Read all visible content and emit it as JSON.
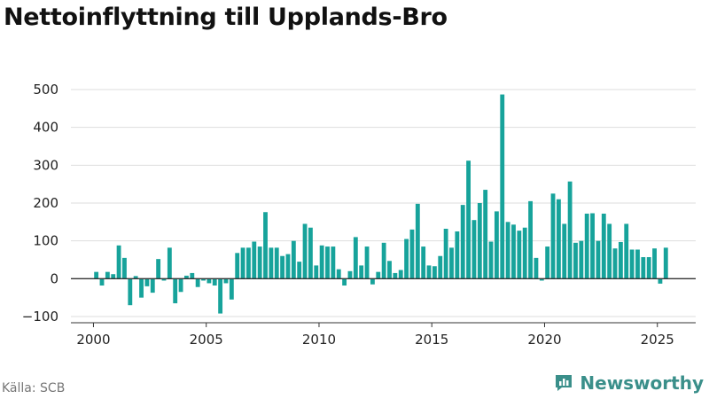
{
  "title": "Nettoinflyttning till Upplands-Bro",
  "source": "Källa: SCB",
  "brand": "Newsworthy",
  "colors": {
    "bar": "#17a39b",
    "axis": "#333333",
    "grid": "#dddddd",
    "brand": "#3a8f8a"
  },
  "chart_data": {
    "type": "bar",
    "ylim": [
      -100,
      500
    ],
    "yticks": [
      -100,
      0,
      100,
      200,
      300,
      400,
      500
    ],
    "ytick_labels": [
      "−100",
      "0",
      "100",
      "200",
      "300",
      "400",
      "500"
    ],
    "xticks": [
      2000,
      2005,
      2010,
      2015,
      2020,
      2025
    ],
    "xlim": [
      1999,
      2026.7
    ],
    "grid": true,
    "bar_width_years": 0.2,
    "x_unit": "quarter (year + fraction)",
    "x": [
      2000.125,
      2000.375,
      2000.625,
      2000.875,
      2001.125,
      2001.375,
      2001.625,
      2001.875,
      2002.125,
      2002.375,
      2002.625,
      2002.875,
      2003.125,
      2003.375,
      2003.625,
      2003.875,
      2004.125,
      2004.375,
      2004.625,
      2004.875,
      2005.125,
      2005.375,
      2005.625,
      2005.875,
      2006.125,
      2006.375,
      2006.625,
      2006.875,
      2007.125,
      2007.375,
      2007.625,
      2007.875,
      2008.125,
      2008.375,
      2008.625,
      2008.875,
      2009.125,
      2009.375,
      2009.625,
      2009.875,
      2010.125,
      2010.375,
      2010.625,
      2010.875,
      2011.125,
      2011.375,
      2011.625,
      2011.875,
      2012.125,
      2012.375,
      2012.625,
      2012.875,
      2013.125,
      2013.375,
      2013.625,
      2013.875,
      2014.125,
      2014.375,
      2014.625,
      2014.875,
      2015.125,
      2015.375,
      2015.625,
      2015.875,
      2016.125,
      2016.375,
      2016.625,
      2016.875,
      2017.125,
      2017.375,
      2017.625,
      2017.875,
      2018.125,
      2018.375,
      2018.625,
      2018.875,
      2019.125,
      2019.375,
      2019.625,
      2019.875,
      2020.125,
      2020.375,
      2020.625,
      2020.875,
      2021.125,
      2021.375,
      2021.625,
      2021.875,
      2022.125,
      2022.375,
      2022.625,
      2022.875,
      2023.125,
      2023.375,
      2023.625,
      2023.875,
      2024.125,
      2024.375,
      2024.625,
      2024.875,
      2025.125,
      2025.375
    ],
    "values": [
      18,
      -18,
      18,
      12,
      88,
      55,
      -70,
      7,
      -50,
      -20,
      -37,
      52,
      -5,
      82,
      -65,
      -35,
      8,
      15,
      -22,
      -5,
      -12,
      -18,
      -92,
      -12,
      -55,
      68,
      82,
      82,
      98,
      85,
      176,
      82,
      82,
      60,
      65,
      100,
      45,
      145,
      135,
      35,
      88,
      85,
      85,
      25,
      -18,
      20,
      110,
      35,
      85,
      -15,
      18,
      95,
      47,
      15,
      23,
      105,
      130,
      198,
      85,
      35,
      33,
      60,
      132,
      82,
      125,
      195,
      312,
      155,
      200,
      235,
      98,
      178,
      487,
      150,
      143,
      127,
      135,
      205,
      55,
      -5,
      85,
      225,
      210,
      145,
      257,
      95,
      100,
      172,
      173,
      100,
      172,
      145,
      80,
      97,
      145,
      77,
      77,
      57,
      57,
      80,
      -13,
      82
    ]
  }
}
